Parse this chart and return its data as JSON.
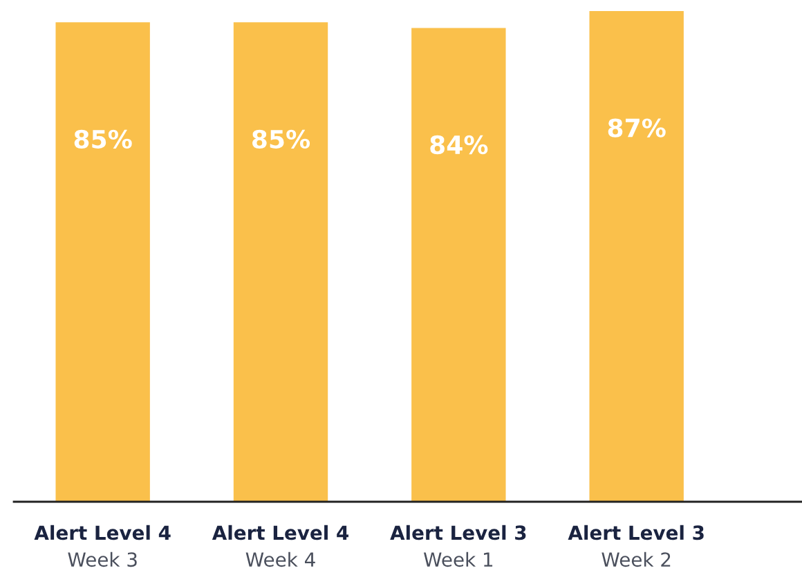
{
  "chart_data": {
    "type": "bar",
    "categories": [
      "Alert Level 4\nWeek 3",
      "Alert Level 4\nWeek 4",
      "Alert Level 3\nWeek 1",
      "Alert Level 3\nWeek 2"
    ],
    "values": [
      85,
      85,
      84,
      87
    ],
    "value_labels": [
      "85%",
      "85%",
      "84%",
      "87%"
    ],
    "color": "#fac04b",
    "grid": false,
    "legend": false
  }
}
